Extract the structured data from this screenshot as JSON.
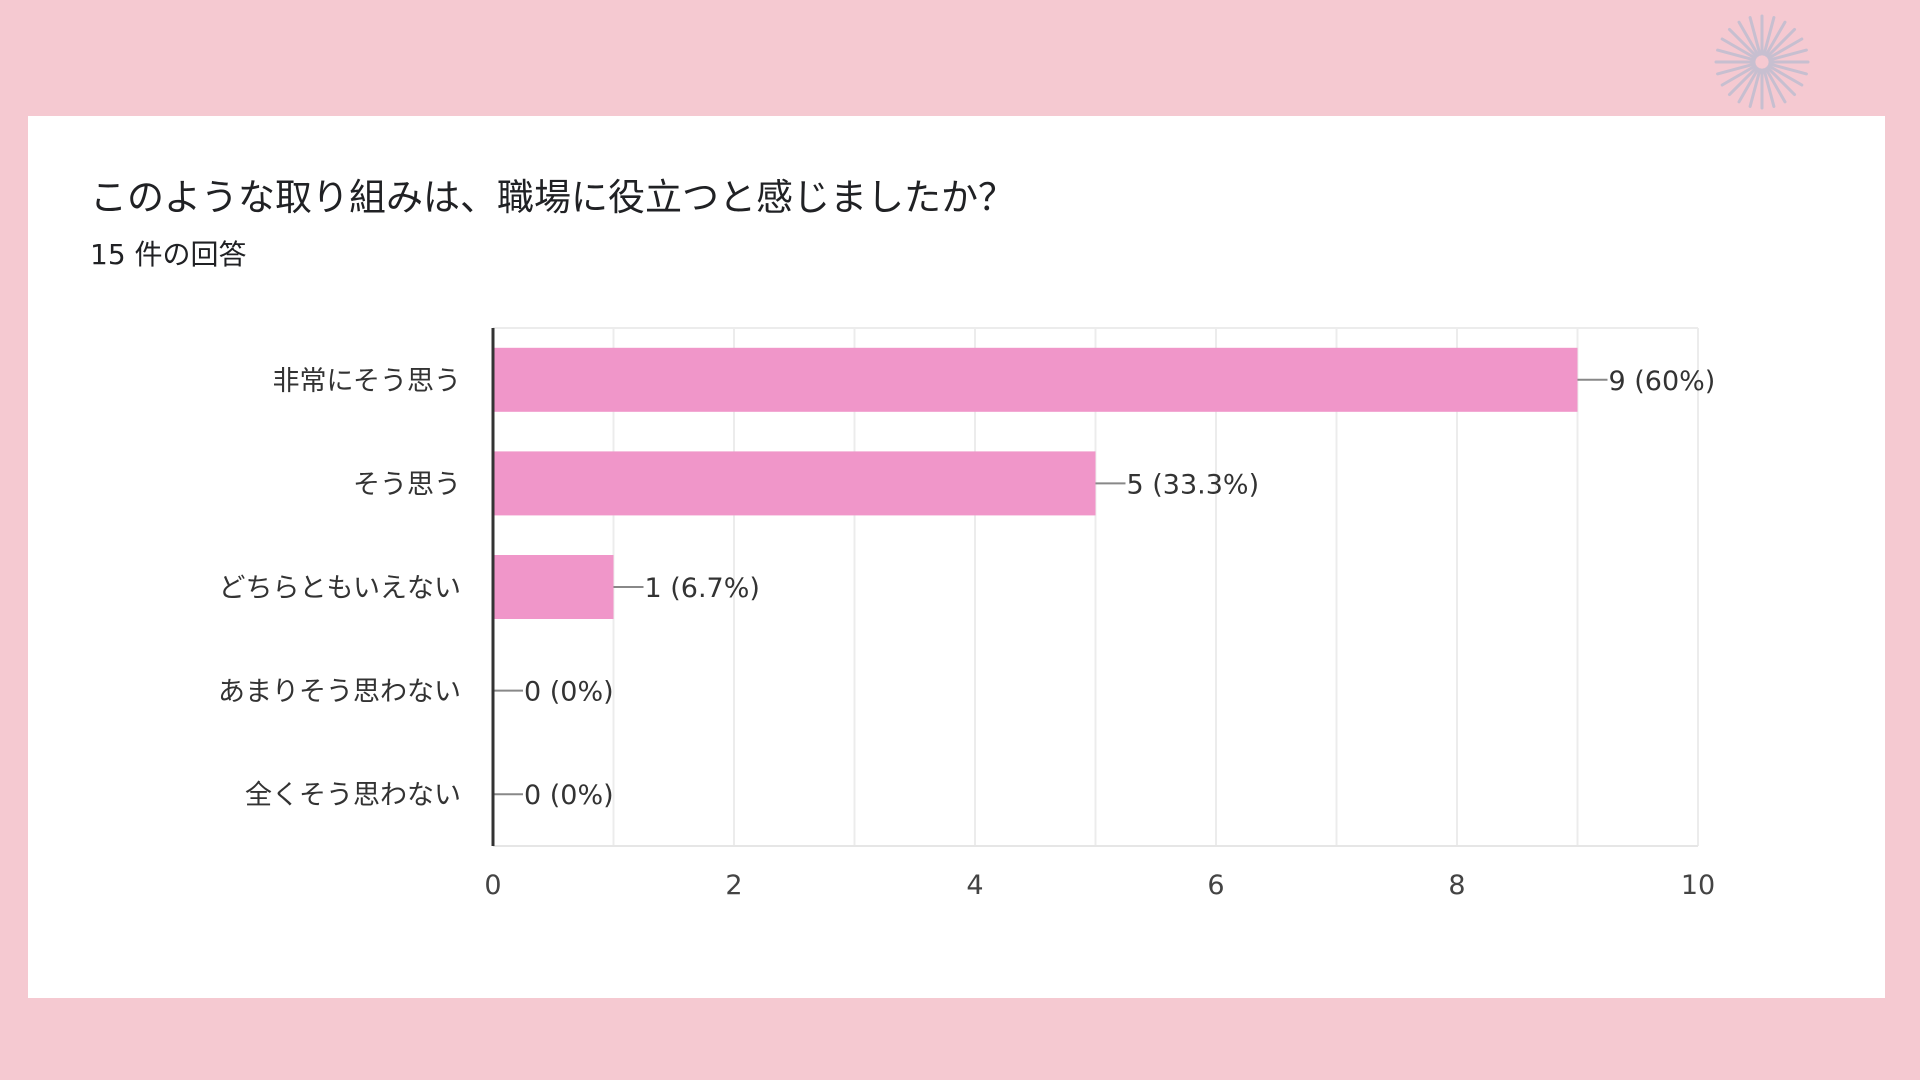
{
  "page": {
    "background": "#f5c9d1",
    "decor_icon": "starburst-icon"
  },
  "card": {
    "title": "このような取り組みは、職場に役立つと感じましたか？",
    "subtitle": "15 件の回答"
  },
  "chart_data": {
    "type": "bar",
    "orientation": "horizontal",
    "title": "このような取り組みは、職場に役立つと感じましたか？",
    "subtitle": "15 件の回答",
    "categories": [
      "非常にそう思う",
      "そう思う",
      "どちらともいえない",
      "あまりそう思わない",
      "全くそう思わない"
    ],
    "values": [
      9,
      5,
      1,
      0,
      0
    ],
    "value_labels": [
      "9 (60%)",
      "5 (33.3%)",
      "1 (6.7%)",
      "0 (0%)",
      "0 (0%)"
    ],
    "xlim": [
      0,
      10
    ],
    "x_ticks": [
      0,
      2,
      4,
      6,
      8,
      10
    ],
    "grid": true,
    "bar_color": "#f096c9"
  }
}
